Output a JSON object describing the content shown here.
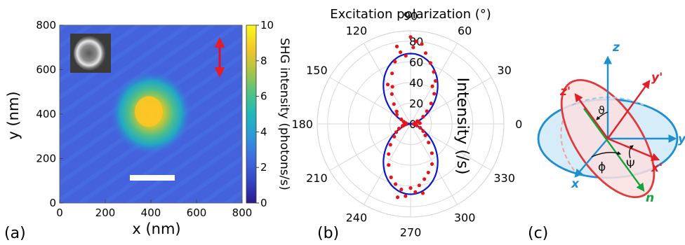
{
  "panel_labels": [
    "(a)",
    "(b)",
    "(c)"
  ],
  "colors": {
    "scale_bar": "#ffffff",
    "arrow_red": "#e0102a",
    "fit_curve": "#0b17c8",
    "data_points": "#e8141c",
    "ellipse_blue_stroke": "#1c8fd0",
    "ellipse_blue_fill": "#d6ecf8",
    "ellipse_red_stroke": "#e23a3a",
    "ellipse_red_fill": "#fbe1e1",
    "axis_blue": "#1a8fd1",
    "axis_red": "#e41e26",
    "axis_green": "#17a33b"
  },
  "chart_data": [
    {
      "type": "heatmap",
      "title": "",
      "xlabel": "x (nm)",
      "ylabel": "y (nm)",
      "xlim": [
        0,
        800
      ],
      "ylim": [
        0,
        800
      ],
      "xticks": [
        0,
        200,
        400,
        600,
        800
      ],
      "yticks": [
        0,
        200,
        400,
        600,
        800
      ],
      "colorbar": {
        "label": "SHG intensity (photons/s)",
        "range": [
          0,
          10
        ],
        "ticks": [
          0,
          2,
          4,
          6,
          8,
          10
        ]
      },
      "hotspot": {
        "center_x": 400,
        "center_y": 405,
        "peak_intensity": 10
      },
      "background_intensity": 1.5
    },
    {
      "type": "scatter",
      "title": "Excitation polarization (°)",
      "projection": "polar",
      "ylabel": "Intensity (/s)",
      "angle_ticks": [
        0,
        30,
        60,
        90,
        120,
        150,
        180,
        210,
        240,
        270,
        300,
        330
      ],
      "angle_tick_labels": [
        "0",
        "30",
        "60",
        "90",
        "120",
        "150",
        "180",
        "210",
        "240",
        "270",
        "300",
        "330"
      ],
      "radial_ticks": [
        0,
        20,
        40,
        60,
        80
      ],
      "rlim": [
        0,
        90
      ],
      "fit": {
        "form": "cos^2",
        "amplitude": 68,
        "orientation_deg": 90
      },
      "series": [
        {
          "points": [
            [
              0,
              3
            ],
            [
              8,
              5
            ],
            [
              15,
              8
            ],
            [
              22,
              7
            ],
            [
              30,
              14
            ],
            [
              38,
              20
            ],
            [
              45,
              28
            ],
            [
              52,
              37
            ],
            [
              60,
              48
            ],
            [
              66,
              55
            ],
            [
              72,
              62
            ],
            [
              78,
              70
            ],
            [
              82,
              78
            ],
            [
              86,
              80
            ],
            [
              88,
              74
            ],
            [
              90,
              84
            ],
            [
              94,
              66
            ],
            [
              98,
              70
            ],
            [
              104,
              62
            ],
            [
              110,
              52
            ],
            [
              116,
              40
            ],
            [
              122,
              34
            ],
            [
              130,
              25
            ],
            [
              138,
              18
            ],
            [
              146,
              16
            ],
            [
              154,
              10
            ],
            [
              162,
              7
            ],
            [
              170,
              5
            ],
            [
              178,
              4
            ],
            [
              186,
              6
            ],
            [
              194,
              8
            ],
            [
              202,
              12
            ],
            [
              210,
              16
            ],
            [
              218,
              20
            ],
            [
              226,
              28
            ],
            [
              234,
              36
            ],
            [
              242,
              45
            ],
            [
              250,
              55
            ],
            [
              256,
              60
            ],
            [
              262,
              64
            ],
            [
              266,
              70
            ],
            [
              270,
              62
            ],
            [
              274,
              66
            ],
            [
              278,
              60
            ],
            [
              284,
              55
            ],
            [
              290,
              50
            ],
            [
              298,
              44
            ],
            [
              306,
              35
            ],
            [
              314,
              25
            ],
            [
              322,
              18
            ],
            [
              330,
              14
            ],
            [
              338,
              10
            ],
            [
              346,
              6
            ],
            [
              354,
              4
            ],
            [
              4,
              9
            ],
            [
              100,
              76
            ],
            [
              260,
              72
            ],
            [
              280,
              68
            ],
            [
              120,
              44
            ],
            [
              60,
              42
            ]
          ]
        }
      ]
    }
  ],
  "diagram": {
    "axes": {
      "z": "z",
      "y": "y",
      "x": "x",
      "z_prime": "z'",
      "y_prime": "y'",
      "x_prime": "x'",
      "n": "n"
    },
    "angles": {
      "theta": "ϑ",
      "phi": "ϕ",
      "psi": "Ψ"
    }
  }
}
